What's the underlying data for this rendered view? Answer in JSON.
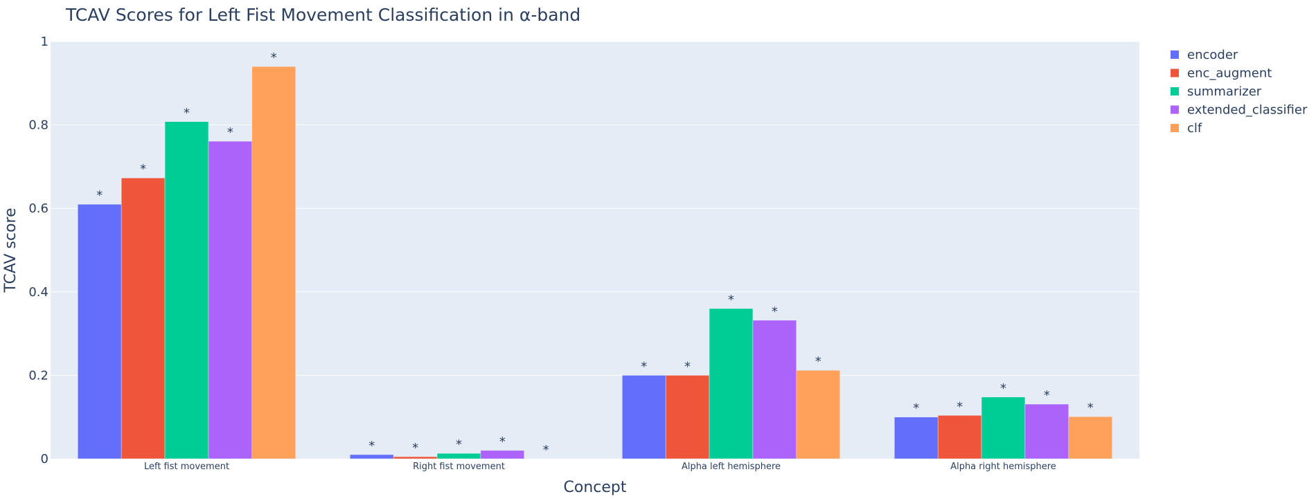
{
  "chart_data": {
    "type": "bar",
    "title": "TCAV Scores for Left Fist Movement Classification in α-band",
    "xlabel": "Concept",
    "ylabel": "TCAV score",
    "categories": [
      "Left fist movement",
      "Right fist movement",
      "Alpha left hemisphere",
      "Alpha right hemisphere"
    ],
    "ylim": [
      0,
      1
    ],
    "yticks": [
      0,
      0.2,
      0.4,
      0.6,
      0.8,
      1
    ],
    "ytick_labels": [
      "0",
      "0.2",
      "0.4",
      "0.6",
      "0.8",
      "1"
    ],
    "grid": true,
    "legend_position": "top-right",
    "background_color": "#e5ecf6",
    "series": [
      {
        "name": "encoder",
        "color": "#636efa",
        "values": [
          0.61,
          0.01,
          0.2,
          0.1
        ],
        "annotations": [
          "*",
          "*",
          "*",
          "*"
        ]
      },
      {
        "name": "enc_augment",
        "color": "#ef553b",
        "values": [
          0.673,
          0.005,
          0.2,
          0.104
        ],
        "annotations": [
          "*",
          "*",
          "*",
          "*"
        ]
      },
      {
        "name": "summarizer",
        "color": "#00cc96",
        "values": [
          0.808,
          0.013,
          0.36,
          0.148
        ],
        "annotations": [
          "*",
          "*",
          "*",
          "*"
        ]
      },
      {
        "name": "extended_classifier",
        "color": "#ab63fa",
        "values": [
          0.761,
          0.02,
          0.332,
          0.131
        ],
        "annotations": [
          "*",
          "*",
          "*",
          "*"
        ]
      },
      {
        "name": "clf",
        "color": "#ffa15a",
        "values": [
          0.94,
          0.0,
          0.212,
          0.101
        ],
        "annotations": [
          "*",
          "*",
          "*",
          "*"
        ]
      }
    ]
  }
}
